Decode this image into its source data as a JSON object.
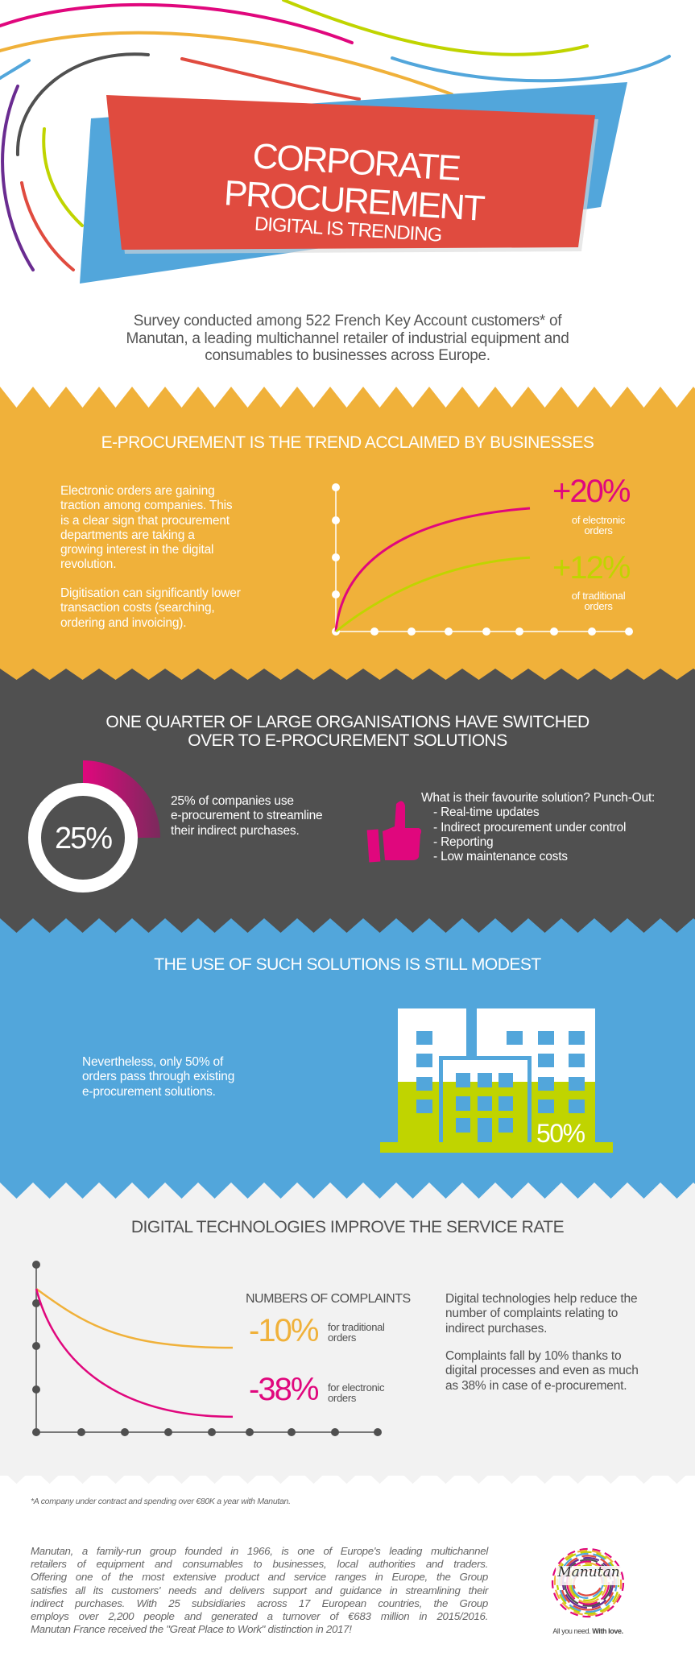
{
  "colors": {
    "orange": "#f0b13a",
    "dark": "#505050",
    "blue": "#52a6db",
    "light": "#f2f2f2",
    "pink": "#e0077d",
    "green": "#c0d400",
    "red": "#e04b3f"
  },
  "header": {
    "title": "CORPORATE PROCUREMENT",
    "subtitle": "DIGITAL IS TRENDING",
    "intro": [
      "Survey conducted among 522 French Key Account customers* of",
      "Manutan, a leading multichannel retailer of industrial equipment and",
      "consumables to businesses across Europe."
    ]
  },
  "trend": {
    "heading": "E-PROCUREMENT IS THE TREND ACCLAIMED BY BUSINESSES",
    "para1": [
      "Electronic orders are gaining",
      "traction among companies. This",
      "is a clear sign that procurement",
      "departments are taking a",
      "growing interest in the digital",
      "revolution."
    ],
    "para2": [
      "Digitisation can significantly lower",
      "transaction costs (searching,",
      "ordering and invoicing)."
    ],
    "electronic": {
      "value": "+20%",
      "label": [
        "of electronic",
        "orders"
      ]
    },
    "traditional": {
      "value": "+12%",
      "label": [
        "of traditional",
        "orders"
      ]
    }
  },
  "switch": {
    "heading": [
      "ONE QUARTER OF LARGE ORGANISATIONS HAVE SWITCHED",
      "OVER TO E-PROCUREMENT SOLUTIONS"
    ],
    "donut_value": "25%",
    "donut_fraction": 0.25,
    "text": [
      "25% of companies use",
      "e-procurement to streamline",
      "their indirect purchases."
    ],
    "solution_title": "What is their favourite solution? Punch-Out:",
    "solution_items": [
      "- Real-time updates",
      "- Indirect procurement under control",
      "- Reporting",
      "- Low maintenance costs"
    ]
  },
  "modest": {
    "heading": "THE USE OF SUCH SOLUTIONS IS STILL MODEST",
    "text": [
      "Nevertheless, only 50% of",
      "orders pass through existing",
      "e-procurement solutions."
    ],
    "building_value": "50%",
    "fill_fraction": 0.5
  },
  "service": {
    "heading": "DIGITAL TECHNOLOGIES IMPROVE THE SERVICE RATE",
    "complaints_title": "NUMBERS OF COMPLAINTS",
    "traditional": {
      "value": "-10%",
      "label": [
        "for traditional",
        "orders"
      ]
    },
    "electronic": {
      "value": "-38%",
      "label": [
        "for electronic",
        "orders"
      ]
    },
    "para1": [
      "Digital technologies help reduce the",
      "number of complaints relating to",
      "indirect purchases."
    ],
    "para2": [
      "Complaints fall by 10% thanks to",
      "digital processes and even as much",
      "as 38% in case of e-procurement."
    ]
  },
  "chart_data": [
    {
      "type": "line",
      "series": [
        {
          "name": "of electronic orders",
          "change_percent": 20
        },
        {
          "name": "of traditional orders",
          "change_percent": 12
        }
      ],
      "grid": false
    },
    {
      "type": "line",
      "title": "NUMBERS OF COMPLAINTS",
      "series": [
        {
          "name": "for traditional orders",
          "change_percent": -10
        },
        {
          "name": "for electronic orders",
          "change_percent": -38
        }
      ],
      "grid": false
    }
  ],
  "footer": {
    "footnote": "*A company under contract and spending over €80K a year with Manutan.",
    "about": [
      "Manutan, a family-run group founded in 1966, is one of Europe's leading multichannel",
      "retailers of equipment and consumables to businesses, local authorities and traders.",
      "Offering one of the most extensive product and service ranges in Europe, the Group",
      "satisfies all its customers' needs and delivers support and guidance in streamlining their",
      "indirect purchases. With 25 subsidiaries across 17 European countries, the Group",
      "employs over 2,200 people and generated a turnover of €683 million in 2015/2016.",
      "Manutan France received the \"Great Place to Work\" distinction in 2017!"
    ],
    "logo_text": "Manutan",
    "tagline": "All you need.",
    "tagline_bold": "With love."
  }
}
